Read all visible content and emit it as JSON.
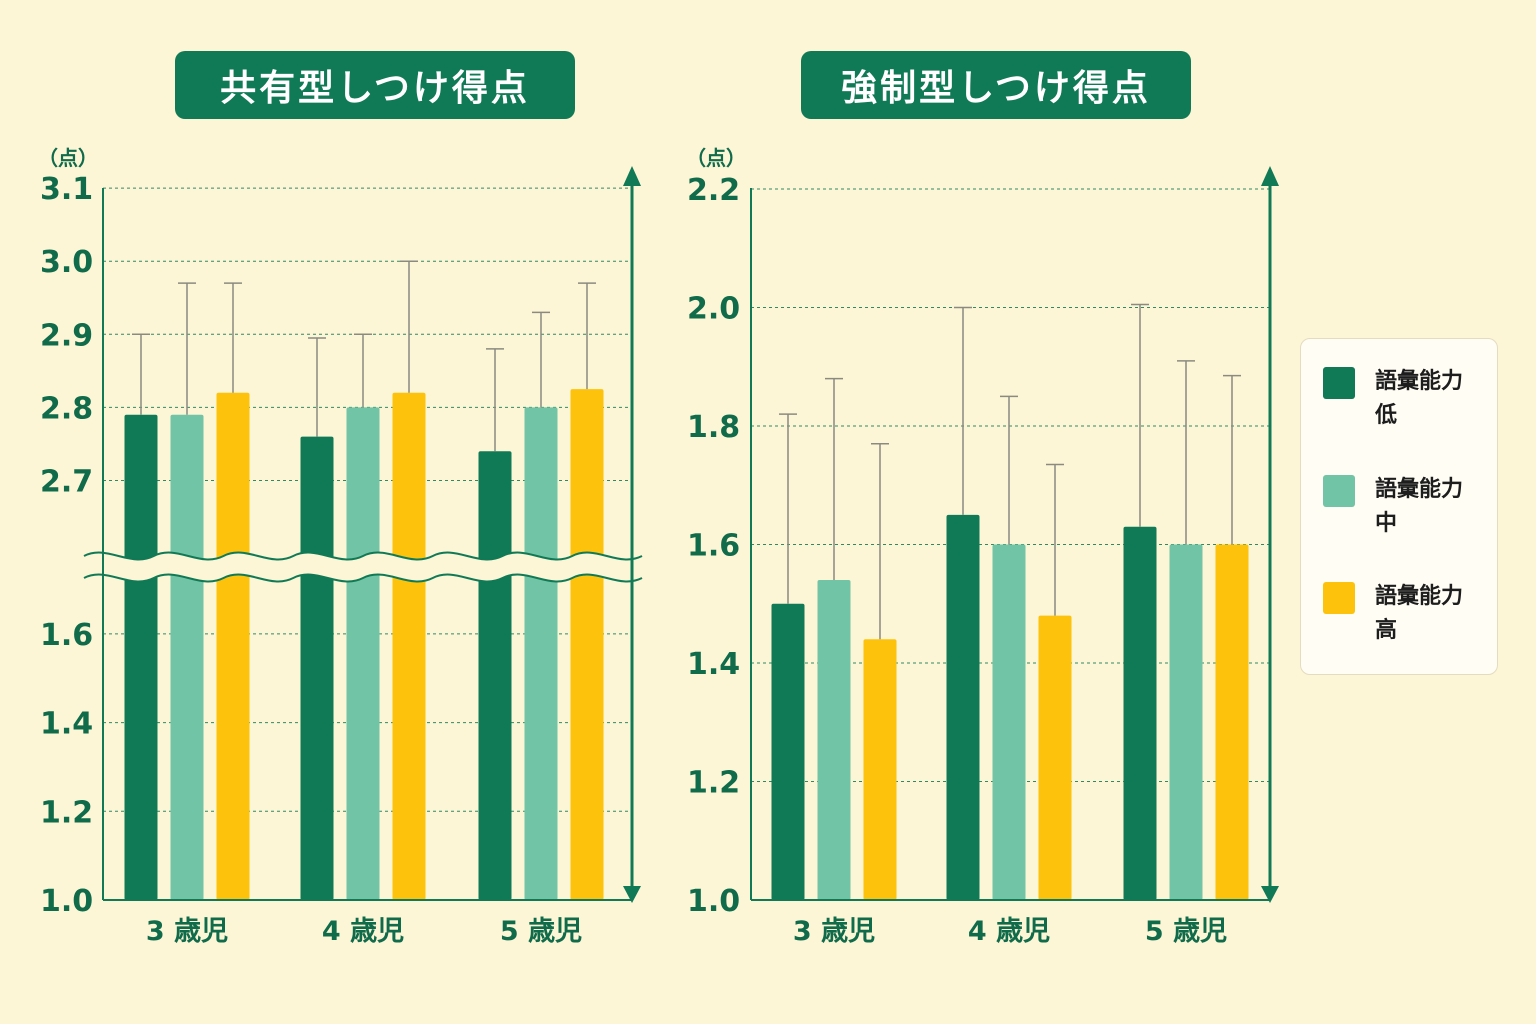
{
  "colors": {
    "background": "#fcf5d6",
    "title_bg": "#0f7a55",
    "axis": "#0f7a55",
    "text": "#0f6b4a",
    "grid": "#2f8a62",
    "error_bar": "#8a8a80",
    "low": "#0f7a55",
    "mid": "#72c4a6",
    "high": "#fdc30c"
  },
  "legend": {
    "items": [
      {
        "key": "low",
        "label": "語彙能力\n低",
        "color": "#0f7a55"
      },
      {
        "key": "mid",
        "label": "語彙能力\n中",
        "color": "#72c4a6"
      },
      {
        "key": "high",
        "label": "語彙能力\n高",
        "color": "#fdc30c"
      }
    ]
  },
  "chart_data": [
    {
      "type": "bar",
      "title": "共有型しつけ得点",
      "ylabel": "（点）",
      "categories": [
        "3 歳児",
        "4 歳児",
        "5 歳児"
      ],
      "axis_break": true,
      "ylim": [
        1.0,
        3.1
      ],
      "y_ticks_lower": [
        "1.0",
        "1.2",
        "1.4",
        "1.6"
      ],
      "y_ticks_upper": [
        "2.7",
        "2.8",
        "2.9",
        "3.0",
        "3.1"
      ],
      "series": [
        {
          "name": "語彙能力 低",
          "values": [
            2.79,
            2.76,
            2.74
          ],
          "error_upper": [
            2.9,
            2.895,
            2.88
          ]
        },
        {
          "name": "語彙能力 中",
          "values": [
            2.79,
            2.8,
            2.8
          ],
          "error_upper": [
            2.97,
            2.9,
            2.93
          ]
        },
        {
          "name": "語彙能力 高",
          "values": [
            2.82,
            2.82,
            2.825
          ],
          "error_upper": [
            2.97,
            3.0,
            2.97
          ]
        }
      ],
      "grid": true
    },
    {
      "type": "bar",
      "title": "強制型しつけ得点",
      "ylabel": "（点）",
      "categories": [
        "3 歳児",
        "4 歳児",
        "5 歳児"
      ],
      "ylim": [
        1.0,
        2.2
      ],
      "y_ticks": [
        "1.0",
        "1.2",
        "1.4",
        "1.6",
        "1.8",
        "2.0",
        "2.2"
      ],
      "series": [
        {
          "name": "語彙能力 低",
          "values": [
            1.5,
            1.65,
            1.63
          ],
          "error_upper": [
            1.82,
            2.0,
            2.005
          ]
        },
        {
          "name": "語彙能力 中",
          "values": [
            1.54,
            1.6,
            1.6
          ],
          "error_upper": [
            1.88,
            1.85,
            1.91
          ]
        },
        {
          "name": "語彙能力 高",
          "values": [
            1.44,
            1.48,
            1.6
          ],
          "error_upper": [
            1.77,
            1.735,
            1.885
          ]
        }
      ],
      "grid": true
    }
  ]
}
